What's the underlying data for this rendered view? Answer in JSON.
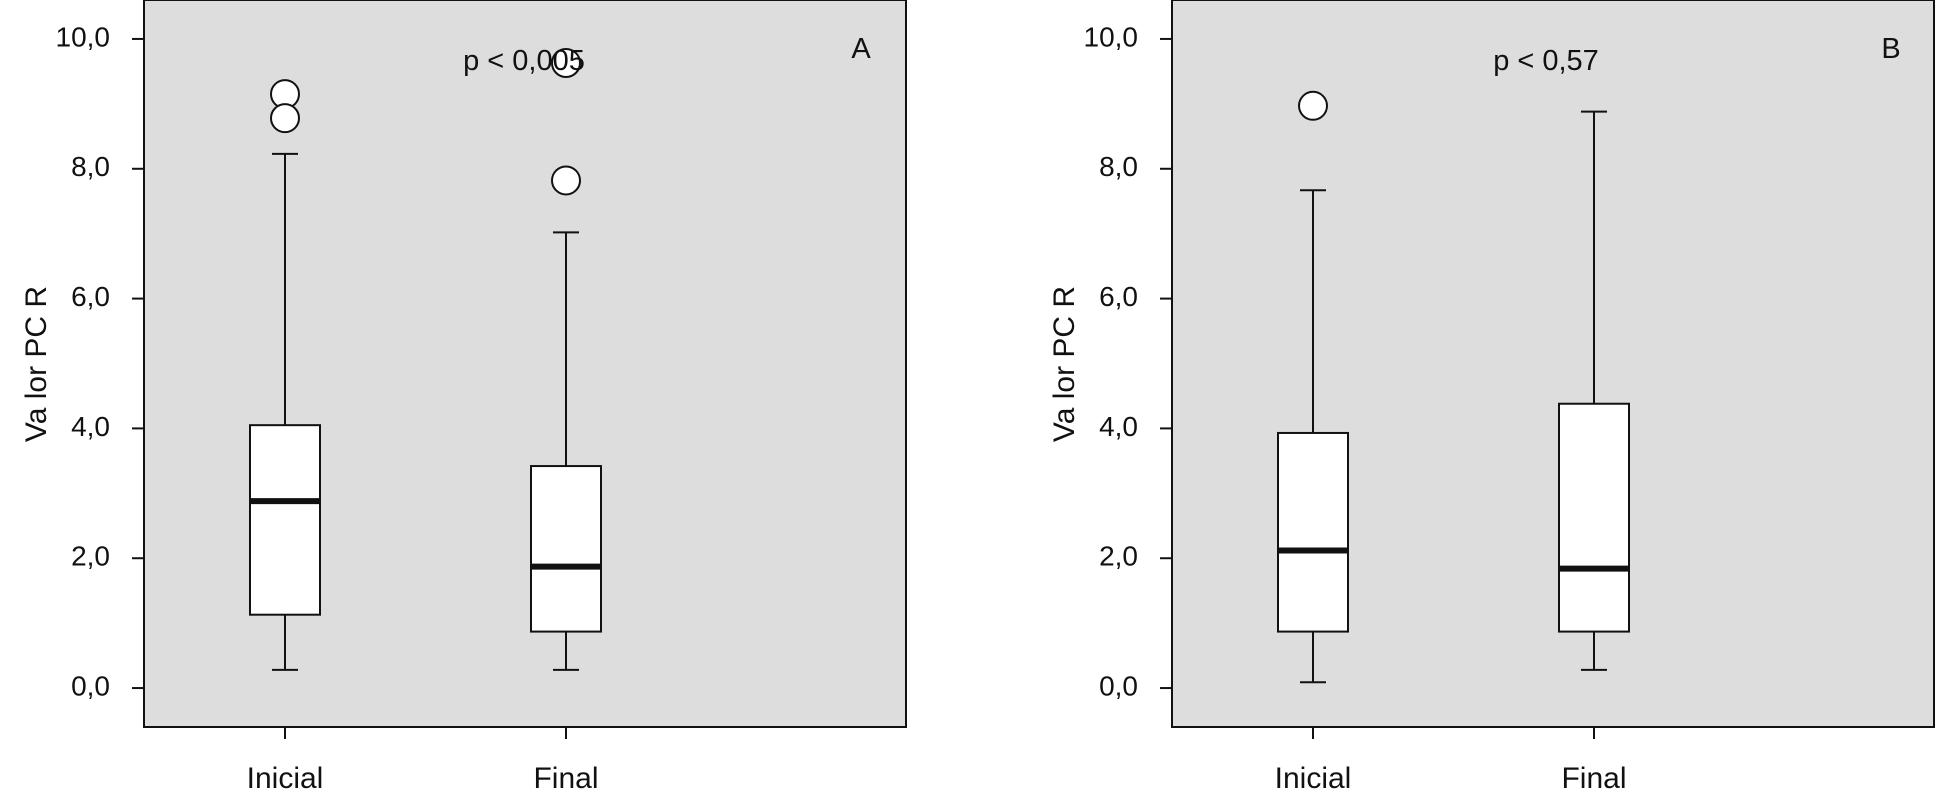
{
  "chart_data": [
    {
      "type": "boxplot",
      "panel_label": "A",
      "annotation": "p < 0,005",
      "ylabel": "Va lor PC R",
      "xlabel": "",
      "ylim": [
        -0.6,
        10.6
      ],
      "y_ticks": [
        "0,0",
        "2,0",
        "4,0",
        "6,0",
        "8,0",
        "10,0"
      ],
      "y_tick_values": [
        0,
        2,
        4,
        6,
        8,
        10
      ],
      "grid": false,
      "background": "#dddddd",
      "categories": [
        "Inicial",
        "Final"
      ],
      "boxes": [
        {
          "category": "Inicial",
          "whisker_low": 0.28,
          "q1": 1.13,
          "median": 2.88,
          "q3": 4.05,
          "whisker_high": 8.23,
          "outliers": [
            9.15,
            8.78
          ]
        },
        {
          "category": "Final",
          "whisker_low": 0.28,
          "q1": 0.87,
          "median": 1.87,
          "q3": 3.42,
          "whisker_high": 7.02,
          "outliers": [
            9.63,
            7.82
          ]
        }
      ]
    },
    {
      "type": "boxplot",
      "panel_label": "B",
      "annotation": "p < 0,57",
      "ylabel": "Va lor PC R",
      "xlabel": "",
      "ylim": [
        -0.6,
        10.6
      ],
      "y_ticks": [
        "0,0",
        "2,0",
        "4,0",
        "6,0",
        "8,0",
        "10,0"
      ],
      "y_tick_values": [
        0,
        2,
        4,
        6,
        8,
        10
      ],
      "grid": false,
      "background": "#dddddd",
      "categories": [
        "Inicial",
        "Final"
      ],
      "boxes": [
        {
          "category": "Inicial",
          "whisker_low": 0.09,
          "q1": 0.87,
          "median": 2.12,
          "q3": 3.93,
          "whisker_high": 7.67,
          "outliers": [
            8.97
          ]
        },
        {
          "category": "Final",
          "whisker_low": 0.28,
          "q1": 0.87,
          "median": 1.84,
          "q3": 4.38,
          "whisker_high": 8.88,
          "outliers": []
        }
      ]
    }
  ]
}
